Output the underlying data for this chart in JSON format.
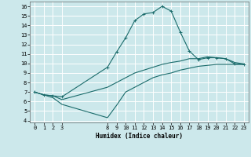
{
  "xlabel": "Humidex (Indice chaleur)",
  "bg_color": "#cce8eb",
  "grid_color": "#ffffff",
  "line_color": "#1a6b6b",
  "xlim": [
    -0.5,
    23.5
  ],
  "ylim": [
    3.8,
    16.5
  ],
  "xticks": [
    0,
    1,
    2,
    3,
    8,
    9,
    10,
    11,
    12,
    13,
    14,
    15,
    16,
    17,
    18,
    19,
    20,
    21,
    22,
    23
  ],
  "yticks": [
    4,
    5,
    6,
    7,
    8,
    9,
    10,
    11,
    12,
    13,
    14,
    15,
    16
  ],
  "line1_x": [
    0,
    1,
    2,
    3,
    8,
    9,
    10,
    11,
    12,
    13,
    14,
    15,
    16,
    17,
    18,
    19,
    20,
    21,
    22,
    23
  ],
  "line1_y": [
    7.0,
    6.7,
    6.6,
    6.5,
    9.6,
    11.2,
    12.7,
    14.5,
    15.2,
    15.35,
    16.0,
    15.5,
    13.3,
    11.3,
    10.4,
    10.6,
    10.6,
    10.5,
    9.95,
    9.9
  ],
  "line2_x": [
    0,
    1,
    2,
    3,
    8,
    9,
    10,
    11,
    12,
    13,
    14,
    15,
    16,
    17,
    18,
    19,
    20,
    21,
    22,
    23
  ],
  "line2_y": [
    7.0,
    6.7,
    6.6,
    6.2,
    7.5,
    8.0,
    8.5,
    9.0,
    9.3,
    9.6,
    9.9,
    10.1,
    10.25,
    10.5,
    10.5,
    10.7,
    10.6,
    10.5,
    10.1,
    9.95
  ],
  "line3_x": [
    0,
    1,
    2,
    3,
    8,
    9,
    10,
    11,
    12,
    13,
    14,
    15,
    16,
    17,
    18,
    19,
    20,
    21,
    22,
    23
  ],
  "line3_y": [
    7.0,
    6.7,
    6.4,
    5.7,
    4.3,
    5.6,
    7.0,
    7.5,
    8.0,
    8.5,
    8.8,
    9.0,
    9.3,
    9.5,
    9.7,
    9.8,
    9.9,
    9.9,
    9.9,
    9.9
  ]
}
